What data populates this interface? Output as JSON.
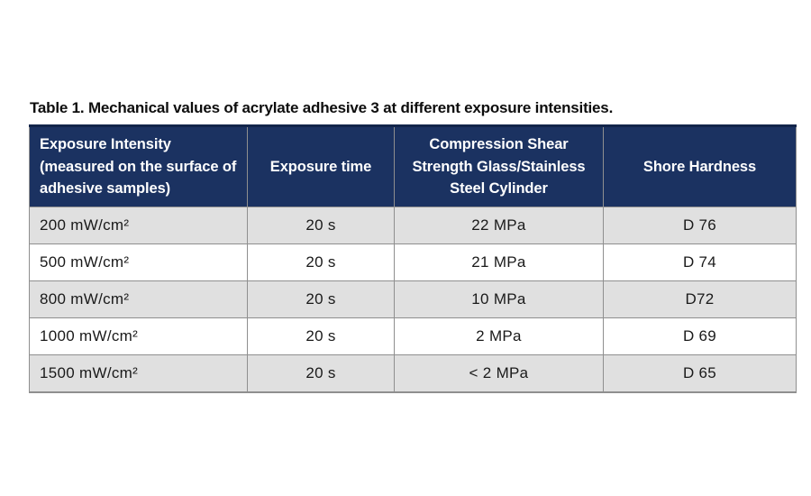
{
  "title": "Table 1. Mechanical values of acrylate adhesive 3 at different exposure intensities.",
  "table": {
    "colors": {
      "header_bg": "#1b3261",
      "header_text": "#ffffff",
      "row_alt_bg": "#e0e0e0",
      "row_bg": "#ffffff",
      "border": "#8f8f8f"
    },
    "headers": {
      "exposure_intensity": "Exposure Intensity\n(measured on the surface of\nadhesive samples)",
      "exposure_time": "Exposure time",
      "compression_shear": "Compression Shear\nStrength Glass/Stainless\nSteel Cylinder",
      "shore_hardness": "Shore Hardness"
    },
    "rows": [
      [
        "200 mW/cm²",
        "20 s",
        "22 MPa",
        "D 76"
      ],
      [
        "500 mW/cm²",
        "20 s",
        "21 MPa",
        "D 74"
      ],
      [
        "800 mW/cm²",
        "20 s",
        "10 MPa",
        "D72"
      ],
      [
        "1000 mW/cm²",
        "20 s",
        "2 MPa",
        "D 69"
      ],
      [
        "1500 mW/cm²",
        "20 s",
        "< 2 MPa",
        "D 65"
      ]
    ]
  }
}
